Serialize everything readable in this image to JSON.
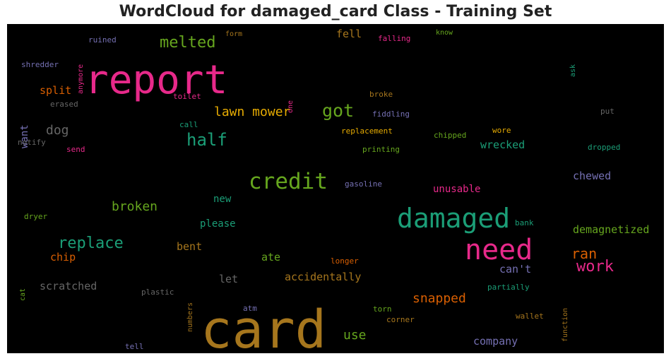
{
  "title": "WordCloud for damaged_card Class - Training Set",
  "chart_data": {
    "type": "wordcloud",
    "background": "#000000",
    "words": [
      {
        "text": "card",
        "color": "#a6761d"
      },
      {
        "text": "report",
        "color": "#e7298a"
      },
      {
        "text": "damaged",
        "color": "#1b9e77"
      },
      {
        "text": "need",
        "color": "#e7298a"
      },
      {
        "text": "credit",
        "color": "#66a61e"
      },
      {
        "text": "got",
        "color": "#66a61e"
      },
      {
        "text": "half",
        "color": "#1b9e77"
      },
      {
        "text": "melted",
        "color": "#66a61e"
      },
      {
        "text": "work",
        "color": "#e7298a"
      },
      {
        "text": "replace",
        "color": "#1b9e77"
      },
      {
        "text": "lawn mower",
        "color": "#e6ab02"
      },
      {
        "text": "broken",
        "color": "#66a61e"
      },
      {
        "text": "ran",
        "color": "#d95f02"
      },
      {
        "text": "dog",
        "color": "#666666"
      },
      {
        "text": "snapped",
        "color": "#d95f02"
      },
      {
        "text": "demagnetized",
        "color": "#66a61e"
      },
      {
        "text": "chewed",
        "color": "#7570b3"
      },
      {
        "text": "accidentally",
        "color": "#a6761d"
      },
      {
        "text": "use",
        "color": "#66a61e"
      },
      {
        "text": "company",
        "color": "#7570b3"
      },
      {
        "text": "split",
        "color": "#d95f02"
      },
      {
        "text": "fell",
        "color": "#a6761d"
      },
      {
        "text": "wrecked",
        "color": "#1b9e77"
      },
      {
        "text": "unusable",
        "color": "#e7298a"
      },
      {
        "text": "please",
        "color": "#1b9e77"
      },
      {
        "text": "scratched",
        "color": "#666666"
      },
      {
        "text": "chip",
        "color": "#d95f02"
      },
      {
        "text": "bent",
        "color": "#a6761d"
      },
      {
        "text": "ate",
        "color": "#66a61e"
      },
      {
        "text": "can't",
        "color": "#7570b3"
      },
      {
        "text": "new",
        "color": "#1b9e77"
      },
      {
        "text": "let",
        "color": "#666666"
      },
      {
        "text": "want",
        "color": "#7570b3"
      },
      {
        "text": "shredder",
        "color": "#7570b3"
      },
      {
        "text": "ruined",
        "color": "#7570b3"
      },
      {
        "text": "form",
        "color": "#a6761d"
      },
      {
        "text": "falling",
        "color": "#e7298a"
      },
      {
        "text": "know",
        "color": "#66a61e"
      },
      {
        "text": "anymore",
        "color": "#e7298a"
      },
      {
        "text": "ask",
        "color": "#1b9e77"
      },
      {
        "text": "erased",
        "color": "#666666"
      },
      {
        "text": "toilet",
        "color": "#e7298a"
      },
      {
        "text": "one",
        "color": "#e7298a"
      },
      {
        "text": "broke",
        "color": "#a6761d"
      },
      {
        "text": "fiddling",
        "color": "#7570b3"
      },
      {
        "text": "put",
        "color": "#666666"
      },
      {
        "text": "call",
        "color": "#1b9e77"
      },
      {
        "text": "replacement",
        "color": "#e6ab02"
      },
      {
        "text": "chipped",
        "color": "#66a61e"
      },
      {
        "text": "wore",
        "color": "#e6ab02"
      },
      {
        "text": "notify",
        "color": "#666666"
      },
      {
        "text": "send",
        "color": "#e7298a"
      },
      {
        "text": "printing",
        "color": "#66a61e"
      },
      {
        "text": "dropped",
        "color": "#1b9e77"
      },
      {
        "text": "gasoline",
        "color": "#7570b3"
      },
      {
        "text": "dryer",
        "color": "#66a61e"
      },
      {
        "text": "bank",
        "color": "#1b9e77"
      },
      {
        "text": "longer",
        "color": "#d95f02"
      },
      {
        "text": "cat",
        "color": "#66a61e"
      },
      {
        "text": "plastic",
        "color": "#666666"
      },
      {
        "text": "numbers",
        "color": "#a6761d"
      },
      {
        "text": "function",
        "color": "#a6761d"
      },
      {
        "text": "partially",
        "color": "#1b9e77"
      },
      {
        "text": "atm",
        "color": "#7570b3"
      },
      {
        "text": "torn",
        "color": "#66a61e"
      },
      {
        "text": "wallet",
        "color": "#a6761d"
      },
      {
        "text": "corner",
        "color": "#a6761d"
      },
      {
        "text": "tell",
        "color": "#7570b3"
      }
    ]
  }
}
